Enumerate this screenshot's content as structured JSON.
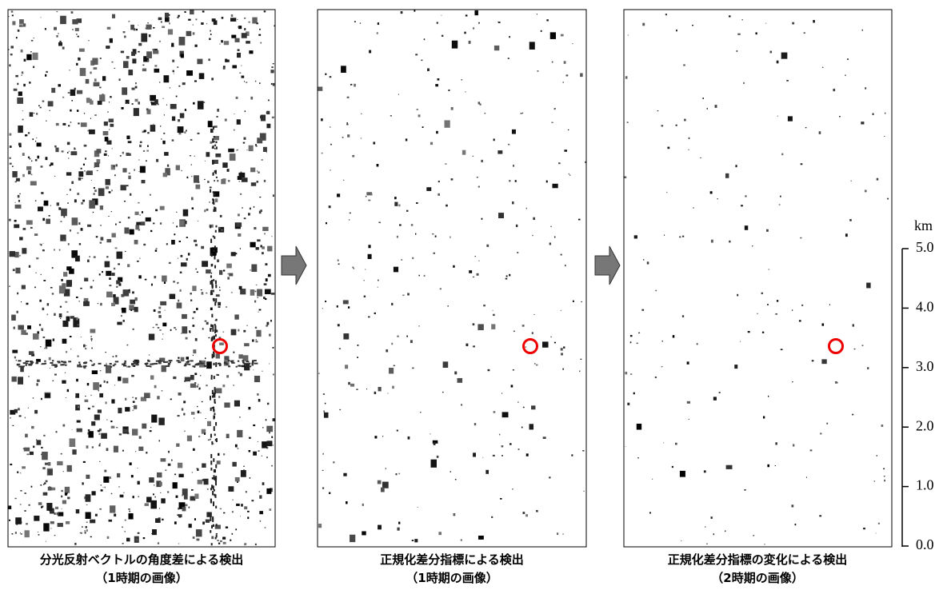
{
  "panels": [
    {
      "caption": [
        "分光反射ベクトルの角度差による検出",
        "（1時期の画像）"
      ]
    },
    {
      "caption": [
        "正規化差分指標による検出",
        "（1時期の画像）"
      ]
    },
    {
      "caption": [
        "正規化差分指標の変化による検出",
        "（2時期の画像）"
      ]
    }
  ],
  "scale": {
    "unit": "km",
    "ticks": [
      {
        "value": 0,
        "label": "0.0"
      },
      {
        "value": 1,
        "label": "1.0"
      },
      {
        "value": 2,
        "label": "2.0"
      },
      {
        "value": 3,
        "label": "3.0"
      },
      {
        "value": 4,
        "label": "4.0"
      },
      {
        "value": 5,
        "label": "5.0"
      }
    ]
  }
}
